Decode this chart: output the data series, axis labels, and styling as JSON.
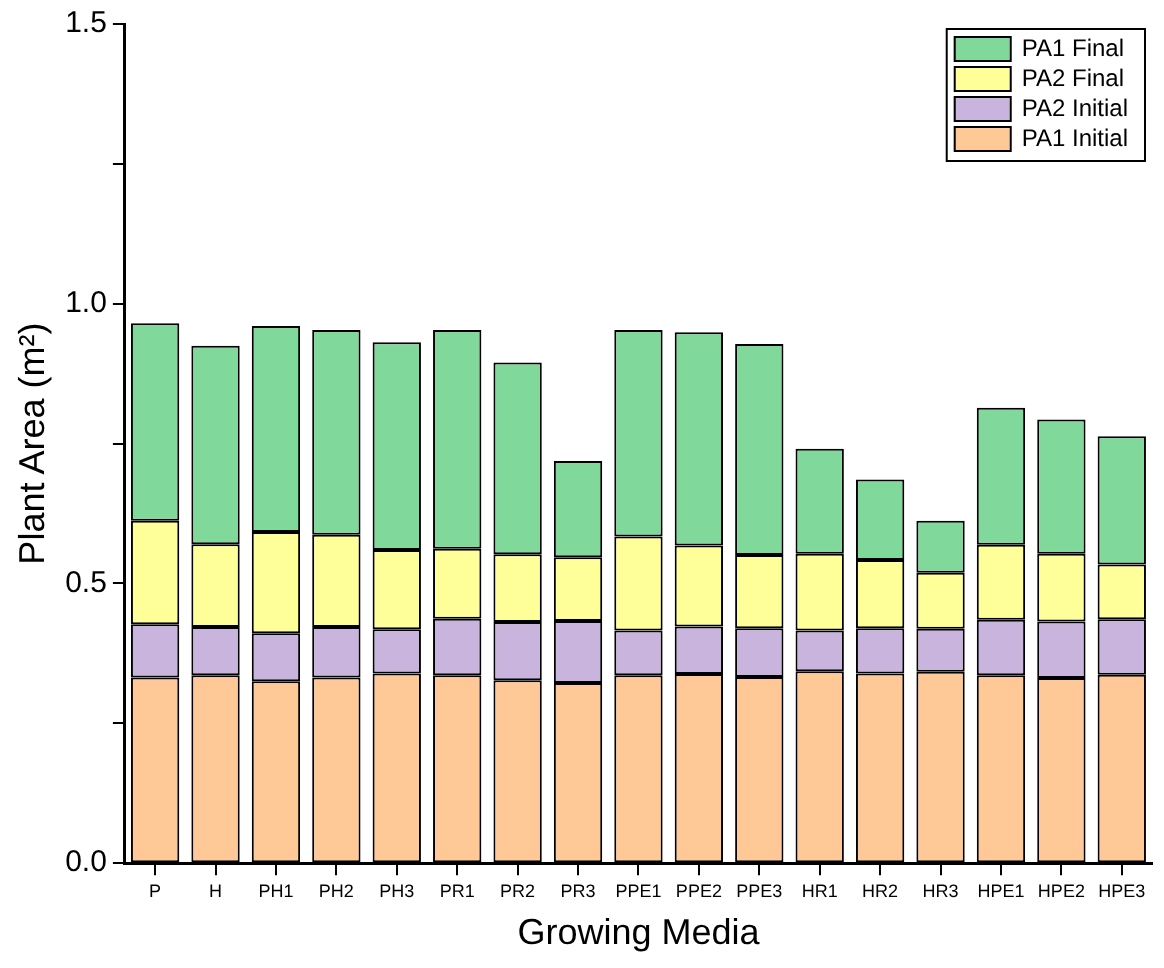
{
  "chart_data": {
    "type": "bar",
    "stacked": true,
    "xlabel": "Growing Media",
    "ylabel": "Plant Area (m²)",
    "categories": [
      "P",
      "H",
      "PH1",
      "PH2",
      "PH3",
      "PR1",
      "PR2",
      "PR3",
      "PPE1",
      "PPE2",
      "PPE3",
      "HR1",
      "HR2",
      "HR3",
      "HPE1",
      "HPE2",
      "HPE3"
    ],
    "series": [
      {
        "name": "PA1 Initial",
        "color": "#ffc896",
        "values": [
          0.332,
          0.336,
          0.325,
          0.332,
          0.339,
          0.336,
          0.327,
          0.322,
          0.336,
          0.338,
          0.333,
          0.343,
          0.339,
          0.342,
          0.336,
          0.331,
          0.337
        ]
      },
      {
        "name": "PA2 Initial",
        "color": "#c8b4dc",
        "values": [
          0.095,
          0.086,
          0.086,
          0.09,
          0.079,
          0.101,
          0.104,
          0.111,
          0.08,
          0.085,
          0.087,
          0.073,
          0.081,
          0.077,
          0.099,
          0.101,
          0.099
        ]
      },
      {
        "name": "PA2 Final",
        "color": "#ffff99",
        "values": [
          0.185,
          0.148,
          0.181,
          0.165,
          0.142,
          0.125,
          0.121,
          0.114,
          0.168,
          0.145,
          0.131,
          0.137,
          0.122,
          0.1,
          0.134,
          0.121,
          0.098
        ]
      },
      {
        "name": "PA1 Final",
        "color": "#80d89a",
        "values": [
          0.353,
          0.355,
          0.368,
          0.366,
          0.371,
          0.391,
          0.343,
          0.172,
          0.369,
          0.381,
          0.377,
          0.188,
          0.144,
          0.093,
          0.245,
          0.24,
          0.229
        ]
      }
    ],
    "ylim": [
      0,
      1.5
    ],
    "yticks": [
      {
        "value": 0,
        "label": "0.0"
      },
      {
        "value": 0.25,
        "label": null
      },
      0.5,
      {
        "value": 0.75,
        "label": null
      },
      {
        "value": 1,
        "label": "1.0"
      },
      {
        "value": 1.25,
        "label": null
      },
      1.5
    ],
    "grid": false,
    "legend": "top right"
  }
}
